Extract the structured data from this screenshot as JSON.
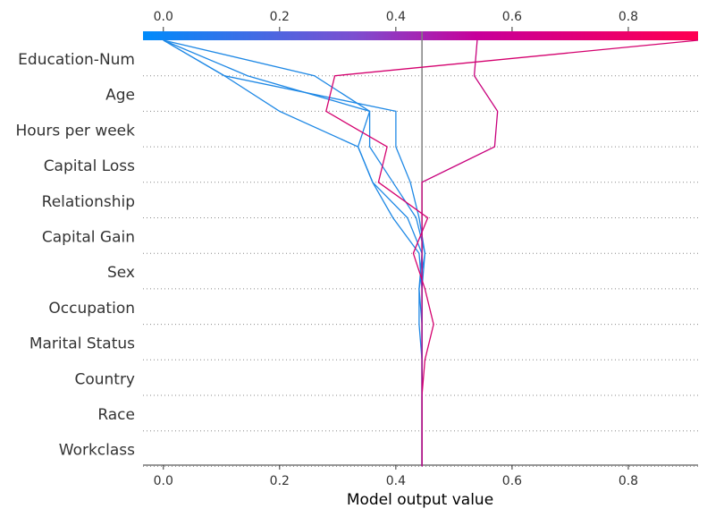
{
  "chart_data": {
    "type": "line",
    "subtype": "shap-decision-plot",
    "xlabel": "Model output value",
    "xlim": [
      -0.035,
      0.92
    ],
    "x_ticks": [
      0.0,
      0.2,
      0.4,
      0.6,
      0.8
    ],
    "x_tick_labels": [
      "0.0",
      "0.2",
      "0.4",
      "0.6",
      "0.8"
    ],
    "features": [
      "Education-Num",
      "Age",
      "Hours per week",
      "Capital Loss",
      "Relationship",
      "Capital Gain",
      "Sex",
      "Occupation",
      "Marital Status",
      "Country",
      "Race",
      "Workclass"
    ],
    "base_value": 0.445,
    "colorbar": {
      "colors": [
        "#008bfb",
        "#7c4fd0",
        "#c7009a",
        "#ff0051"
      ],
      "range": [
        0.0,
        0.92
      ]
    },
    "grid": "dotted-horizontal",
    "series": [
      {
        "color": "#1e88e5",
        "final_value": 0.0,
        "values": [
          0.0,
          0.26,
          0.355,
          0.335,
          0.36,
          0.42,
          0.445,
          0.44,
          0.445,
          0.445,
          0.445,
          0.445,
          0.445
        ]
      },
      {
        "color": "#1e88e5",
        "final_value": 0.0,
        "values": [
          0.0,
          0.145,
          0.355,
          0.355,
          0.395,
          0.435,
          0.45,
          0.44,
          0.44,
          0.445,
          0.445,
          0.445,
          0.445
        ]
      },
      {
        "color": "#1e88e5",
        "final_value": 0.0,
        "values": [
          0.0,
          0.105,
          0.4,
          0.4,
          0.425,
          0.44,
          0.45,
          0.445,
          0.445,
          0.445,
          0.445,
          0.445,
          0.445
        ]
      },
      {
        "color": "#1e88e5",
        "final_value": 0.0,
        "values": [
          0.0,
          0.2,
          0.2,
          0.2,
          0.2,
          0.2,
          0.2,
          0.2,
          0.2,
          0.2,
          0.2,
          0.2,
          0.2
        ],
        "override": [
          0.0,
          0.105,
          0.2,
          0.335,
          0.36,
          0.395,
          0.44,
          0.445,
          0.445,
          0.445,
          0.445,
          0.445,
          0.445
        ]
      },
      {
        "color": "#d4006e",
        "final_value": 0.92,
        "values": [
          0.92,
          0.295,
          0.28,
          0.385,
          0.37,
          0.455,
          0.43,
          0.45,
          0.465,
          0.45,
          0.445,
          0.445,
          0.445
        ]
      },
      {
        "color": "#c8007c",
        "final_value": 0.54,
        "values": [
          0.54,
          0.535,
          0.575,
          0.57,
          0.445,
          0.445,
          0.445,
          0.445,
          0.445,
          0.445,
          0.445,
          0.445,
          0.445
        ]
      }
    ]
  }
}
